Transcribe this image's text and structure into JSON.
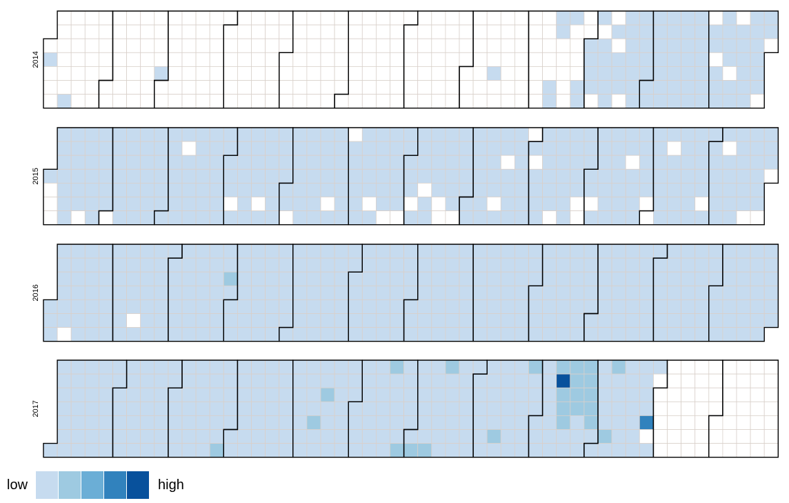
{
  "chart_data": {
    "type": "heatmap",
    "subtype": "calendar",
    "title": "",
    "years": [
      "2014",
      "2015",
      "2016",
      "2017"
    ],
    "week_start": "monday",
    "level_colors": [
      "#ffffff",
      "#c6dbef",
      "#9ecae1",
      "#6baed6",
      "#3182bd",
      "#08519c"
    ],
    "cell_border_color": "#d9d0ca",
    "grid": true,
    "levels": {
      "2014": {
        "default": 0,
        "cells": {
          "2014-01-12": 1,
          "2014-01-02": 1,
          "2014-02-28": 1,
          "2014-08-15": 1,
          "2014-09-13": 1,
          "2014-09-14": 1,
          "2014-09-15": 1,
          "2014-09-16": 1,
          "2014-09-22": 1,
          "2014-09-27": 1,
          "2014-09-28": 1,
          "2014-10-01": 1,
          "2014-10-02": 1,
          "2014-10-03": 1,
          "2014-10-04": 1,
          "2014-10-06": 1,
          "2014-10-08": 1,
          "2014-10-09": 1,
          "2014-10-10": 1,
          "2014-10-11": 1,
          "2014-10-12": 1,
          "2014-10-14": 1,
          "2014-10-16": 1,
          "2014-10-17": 1,
          "2014-10-18": 1,
          "2014-10-20": 1,
          "2014-10-21": 1,
          "2014-10-22": 1,
          "2014-10-23": 1,
          "2014-10-24": 1,
          "2014-10-25": 1,
          "2014-10-26": 1,
          "2014-10-27": 1,
          "2014-10-28": 1,
          "2014-10-29": 1,
          "2014-10-30": 1,
          "2014-10-31": 1,
          "2014-11-01": 1,
          "2014-11-02": 1,
          "2014-11-03": 1,
          "2014-11-04": 1,
          "2014-11-05": 1,
          "2014-11-06": 1,
          "2014-11-07": 1,
          "2014-11-08": 1,
          "2014-11-09": 1,
          "2014-11-10": 1,
          "2014-11-11": 1,
          "2014-11-12": 1,
          "2014-11-13": 1,
          "2014-11-14": 1,
          "2014-11-15": 1,
          "2014-11-16": 1,
          "2014-11-17": 1,
          "2014-11-18": 1,
          "2014-11-19": 1,
          "2014-11-20": 1,
          "2014-11-21": 1,
          "2014-11-22": 1,
          "2014-11-23": 1,
          "2014-11-24": 1,
          "2014-11-25": 1,
          "2014-11-26": 1,
          "2014-11-27": 1,
          "2014-11-28": 1,
          "2014-11-29": 1,
          "2014-11-30": 1,
          "2014-12-02": 1,
          "2014-12-03": 1,
          "2014-12-05": 1,
          "2014-12-06": 1,
          "2014-12-07": 1,
          "2014-12-08": 1,
          "2014-12-09": 1,
          "2014-12-10": 1,
          "2014-12-11": 1,
          "2014-12-13": 1,
          "2014-12-14": 1,
          "2014-12-16": 1,
          "2014-12-17": 1,
          "2014-12-18": 1,
          "2014-12-19": 1,
          "2014-12-20": 1,
          "2014-12-21": 1,
          "2014-12-22": 1,
          "2014-12-23": 1,
          "2014-12-24": 1,
          "2014-12-25": 1,
          "2014-12-26": 1,
          "2014-12-27": 1,
          "2014-12-29": 1,
          "2014-12-30": 1
        }
      },
      "2015": {
        "default": 1,
        "cells": {
          "2015-01-02": 0,
          "2015-01-03": 0,
          "2015-01-04": 0,
          "2015-01-18": 0,
          "2015-01-03b": 0,
          "2015-02-01": 0,
          "2015-03-10": 0,
          "2015-04-04": 0,
          "2015-04-18": 0,
          "2015-05-23": 0,
          "2015-05-03": 0,
          "2015-06-01": 0,
          "2015-06-13": 0,
          "2015-06-21": 0,
          "2015-06-28": 0,
          "2015-07-04": 0,
          "2015-07-10": 0,
          "2015-07-18": 0,
          "2015-07-19": 0,
          "2015-07-26": 0,
          "2015-08-15": 0,
          "2015-08-19": 0,
          "2015-08-31": 0,
          "2015-09-02": 0,
          "2015-09-13": 0,
          "2015-09-26": 0,
          "2015-09-27": 0,
          "2015-10-03": 0,
          "2015-10-21": 0,
          "2015-10-31": 0,
          "2015-11-01": 0,
          "2015-11-10": 0,
          "2015-11-28": 0,
          "2015-12-08": 0,
          "2015-12-20": 0,
          "2015-12-27": 0,
          "2015-12-31": 0
        }
      },
      "2016": {
        "default": 1,
        "cells": {
          "2016-01-10": 0,
          "2016-02-13": 0,
          "2016-03-30": 2
        }
      },
      "2017": {
        "default": 1,
        "cells": {
          "2017-03-26": 2,
          "2017-05-17": 2,
          "2017-05-12": 2,
          "2017-06-19": 2,
          "2017-06-25": 2,
          "2017-07-02": 2,
          "2017-07-09": 2,
          "2017-07-17": 2,
          "2017-08-12": 2,
          "2017-08-28": 2,
          "2017-09-11": 2,
          "2017-09-12": 5,
          "2017-09-13": 2,
          "2017-09-14": 2,
          "2017-09-15": 2,
          "2017-09-18": 2,
          "2017-09-19": 2,
          "2017-09-20": 2,
          "2017-09-21": 2,
          "2017-09-25": 2,
          "2017-09-26": 2,
          "2017-09-27": 2,
          "2017-09-28": 2,
          "2017-09-29": 2,
          "2017-10-07": 2,
          "2017-10-09": 2,
          "2017-10-27": 4,
          "2017-10-28": 0,
          "2017-10-31": 0,
          "2017-11-01": 0,
          "2017-11-02": 0,
          "2017-11-03": 0,
          "2017-11-04": 0,
          "2017-11-05": 0,
          "2017-11-06": 0,
          "2017-11-07": 0,
          "2017-11-08": 0,
          "2017-11-09": 0,
          "2017-11-10": 0,
          "2017-11-11": 0,
          "2017-11-12": 0,
          "2017-11-13": 0,
          "2017-11-14": 0,
          "2017-11-15": 0,
          "2017-11-16": 0,
          "2017-11-17": 0,
          "2017-11-18": 0,
          "2017-11-19": 0,
          "2017-11-20": 0,
          "2017-11-21": 0,
          "2017-11-22": 0,
          "2017-11-23": 0,
          "2017-11-24": 0,
          "2017-11-25": 0,
          "2017-11-26": 0,
          "2017-11-27": 0,
          "2017-11-28": 0,
          "2017-11-29": 0,
          "2017-11-30": 0,
          "2017-12-01": 0,
          "2017-12-02": 0,
          "2017-12-03": 0,
          "2017-12-04": 0,
          "2017-12-05": 0,
          "2017-12-06": 0,
          "2017-12-07": 0,
          "2017-12-08": 0,
          "2017-12-09": 0,
          "2017-12-10": 0,
          "2017-12-11": 0,
          "2017-12-12": 0,
          "2017-12-13": 0,
          "2017-12-14": 0,
          "2017-12-15": 0,
          "2017-12-16": 0,
          "2017-12-17": 0,
          "2017-12-18": 0,
          "2017-12-19": 0,
          "2017-12-20": 0,
          "2017-12-21": 0,
          "2017-12-22": 0,
          "2017-12-23": 0,
          "2017-12-24": 0,
          "2017-12-25": 0,
          "2017-12-26": 0,
          "2017-12-27": 0,
          "2017-12-28": 0,
          "2017-12-29": 0,
          "2017-12-30": 0,
          "2017-12-31": 0
        }
      }
    },
    "legend": {
      "low_label": "low",
      "high_label": "high",
      "colors": [
        "#c6dbef",
        "#9ecae1",
        "#6baed6",
        "#3182bd",
        "#08519c"
      ]
    }
  }
}
